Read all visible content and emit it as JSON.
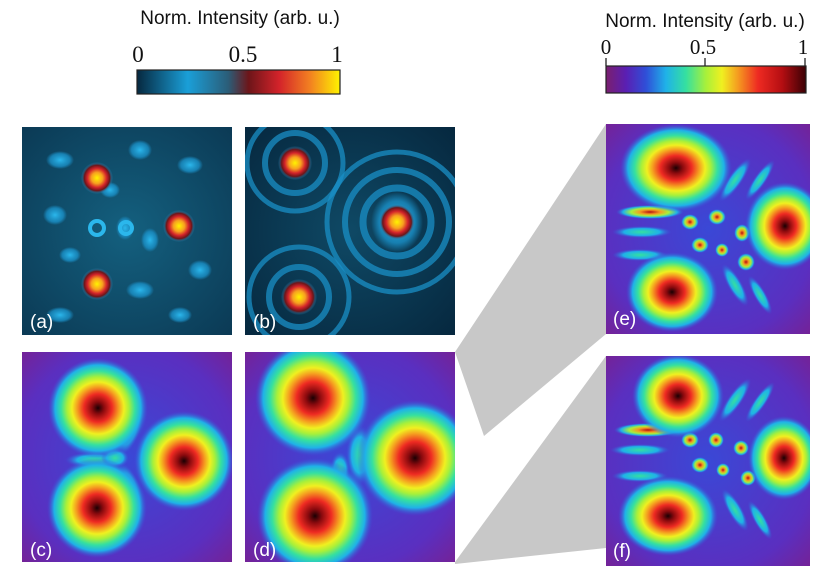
{
  "colorbar_left": {
    "title": "Norm. Intensity (arb. u.)",
    "ticks": [
      "0",
      "0.5",
      "1"
    ],
    "colors": [
      "#06283f",
      "#1a9fd8",
      "#2b5d78",
      "#6d1519",
      "#d3232a",
      "#f27f21",
      "#fff300"
    ]
  },
  "colorbar_right": {
    "title": "Norm. Intensity (arb. u.)",
    "ticks": [
      "0",
      "0.5",
      "1"
    ],
    "colors": [
      "#7a1f6e",
      "#5a1fb3",
      "#2f4fd8",
      "#1fb2e8",
      "#35e0a0",
      "#a8f03a",
      "#f0f020",
      "#f59b20",
      "#ee2a22",
      "#b50e12",
      "#3a0005"
    ]
  },
  "panels": [
    {
      "label": "(a)"
    },
    {
      "label": "(b)"
    },
    {
      "label": "(c)"
    },
    {
      "label": "(d)"
    },
    {
      "label": "(e)"
    },
    {
      "label": "(f)"
    }
  ]
}
